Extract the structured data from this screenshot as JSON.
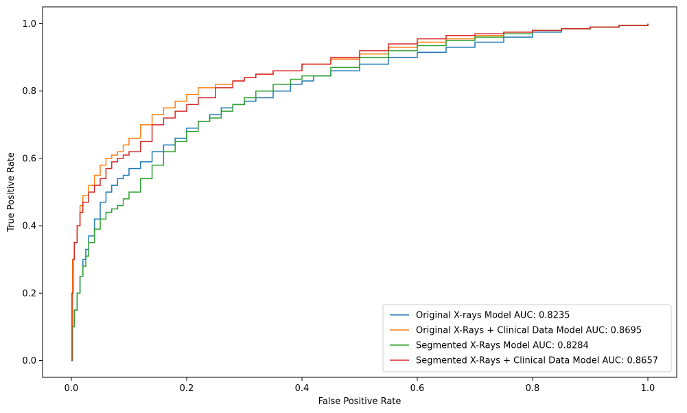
{
  "chart_data": {
    "type": "line",
    "title": "",
    "xlabel": "False Positive Rate",
    "ylabel": "True Positive Rate",
    "xlim": [
      -0.05,
      1.05
    ],
    "ylim": [
      -0.05,
      1.05
    ],
    "xticks": [
      "0.0",
      "0.2",
      "0.4",
      "0.6",
      "0.8",
      "1.0"
    ],
    "yticks": [
      "0.0",
      "0.2",
      "0.4",
      "0.6",
      "0.8",
      "1.0"
    ],
    "grid": false,
    "legend_position": "lower-right",
    "series": [
      {
        "name": "Original X-rays Model AUC: 0.8235",
        "color": "#1f77b4",
        "x": [
          0.0,
          0.002,
          0.005,
          0.01,
          0.015,
          0.02,
          0.025,
          0.03,
          0.04,
          0.05,
          0.06,
          0.07,
          0.08,
          0.09,
          0.1,
          0.12,
          0.14,
          0.16,
          0.18,
          0.2,
          0.22,
          0.24,
          0.26,
          0.28,
          0.3,
          0.32,
          0.35,
          0.38,
          0.4,
          0.42,
          0.45,
          0.5,
          0.55,
          0.6,
          0.65,
          0.7,
          0.75,
          0.8,
          0.85,
          0.9,
          0.95,
          1.0
        ],
        "y": [
          0.0,
          0.1,
          0.15,
          0.2,
          0.25,
          0.3,
          0.33,
          0.37,
          0.42,
          0.47,
          0.5,
          0.52,
          0.54,
          0.55,
          0.57,
          0.59,
          0.62,
          0.64,
          0.66,
          0.69,
          0.71,
          0.73,
          0.75,
          0.76,
          0.77,
          0.78,
          0.8,
          0.82,
          0.83,
          0.845,
          0.86,
          0.88,
          0.9,
          0.915,
          0.93,
          0.945,
          0.96,
          0.975,
          0.985,
          0.99,
          0.995,
          1.0
        ]
      },
      {
        "name": "Original X-Rays + Clinical Data Model AUC: 0.8695",
        "color": "#ff7f0e",
        "x": [
          0.0,
          0.002,
          0.005,
          0.01,
          0.015,
          0.02,
          0.03,
          0.04,
          0.05,
          0.06,
          0.07,
          0.08,
          0.09,
          0.1,
          0.12,
          0.14,
          0.16,
          0.18,
          0.2,
          0.22,
          0.25,
          0.28,
          0.3,
          0.32,
          0.35,
          0.4,
          0.45,
          0.5,
          0.55,
          0.6,
          0.65,
          0.7,
          0.75,
          0.8,
          0.85,
          0.9,
          0.95,
          1.0
        ],
        "y": [
          0.0,
          0.3,
          0.35,
          0.4,
          0.46,
          0.49,
          0.52,
          0.55,
          0.58,
          0.6,
          0.61,
          0.62,
          0.64,
          0.66,
          0.7,
          0.73,
          0.75,
          0.77,
          0.79,
          0.81,
          0.82,
          0.83,
          0.84,
          0.85,
          0.86,
          0.88,
          0.895,
          0.91,
          0.93,
          0.945,
          0.955,
          0.965,
          0.975,
          0.98,
          0.985,
          0.99,
          0.995,
          1.0
        ]
      },
      {
        "name": "Segmented X-Rays Model AUC: 0.8284",
        "color": "#2ca02c",
        "x": [
          0.0,
          0.002,
          0.005,
          0.01,
          0.015,
          0.02,
          0.025,
          0.03,
          0.04,
          0.05,
          0.06,
          0.07,
          0.08,
          0.09,
          0.1,
          0.12,
          0.14,
          0.16,
          0.18,
          0.2,
          0.22,
          0.24,
          0.26,
          0.28,
          0.3,
          0.32,
          0.35,
          0.38,
          0.4,
          0.45,
          0.5,
          0.55,
          0.6,
          0.65,
          0.7,
          0.75,
          0.8,
          0.85,
          0.9,
          0.95,
          1.0
        ],
        "y": [
          0.0,
          0.1,
          0.15,
          0.2,
          0.25,
          0.28,
          0.31,
          0.35,
          0.39,
          0.42,
          0.44,
          0.45,
          0.46,
          0.48,
          0.5,
          0.54,
          0.58,
          0.62,
          0.65,
          0.68,
          0.71,
          0.72,
          0.74,
          0.76,
          0.78,
          0.8,
          0.82,
          0.835,
          0.845,
          0.87,
          0.9,
          0.92,
          0.935,
          0.95,
          0.96,
          0.97,
          0.98,
          0.985,
          0.99,
          0.995,
          1.0
        ]
      },
      {
        "name": "Segmented X-Rays + Clinical Data Model AUC: 0.8657",
        "color": "#d62728",
        "x": [
          0.0,
          0.001,
          0.003,
          0.005,
          0.01,
          0.015,
          0.02,
          0.03,
          0.04,
          0.05,
          0.06,
          0.07,
          0.08,
          0.09,
          0.1,
          0.12,
          0.14,
          0.16,
          0.18,
          0.2,
          0.22,
          0.25,
          0.28,
          0.3,
          0.32,
          0.35,
          0.4,
          0.45,
          0.5,
          0.55,
          0.6,
          0.65,
          0.7,
          0.75,
          0.8,
          0.85,
          0.9,
          0.95,
          1.0
        ],
        "y": [
          0.0,
          0.2,
          0.3,
          0.35,
          0.4,
          0.44,
          0.47,
          0.5,
          0.52,
          0.54,
          0.57,
          0.59,
          0.6,
          0.61,
          0.62,
          0.65,
          0.7,
          0.72,
          0.74,
          0.76,
          0.78,
          0.81,
          0.83,
          0.84,
          0.85,
          0.86,
          0.88,
          0.9,
          0.92,
          0.94,
          0.955,
          0.965,
          0.97,
          0.975,
          0.98,
          0.985,
          0.99,
          0.995,
          1.0
        ]
      }
    ]
  }
}
